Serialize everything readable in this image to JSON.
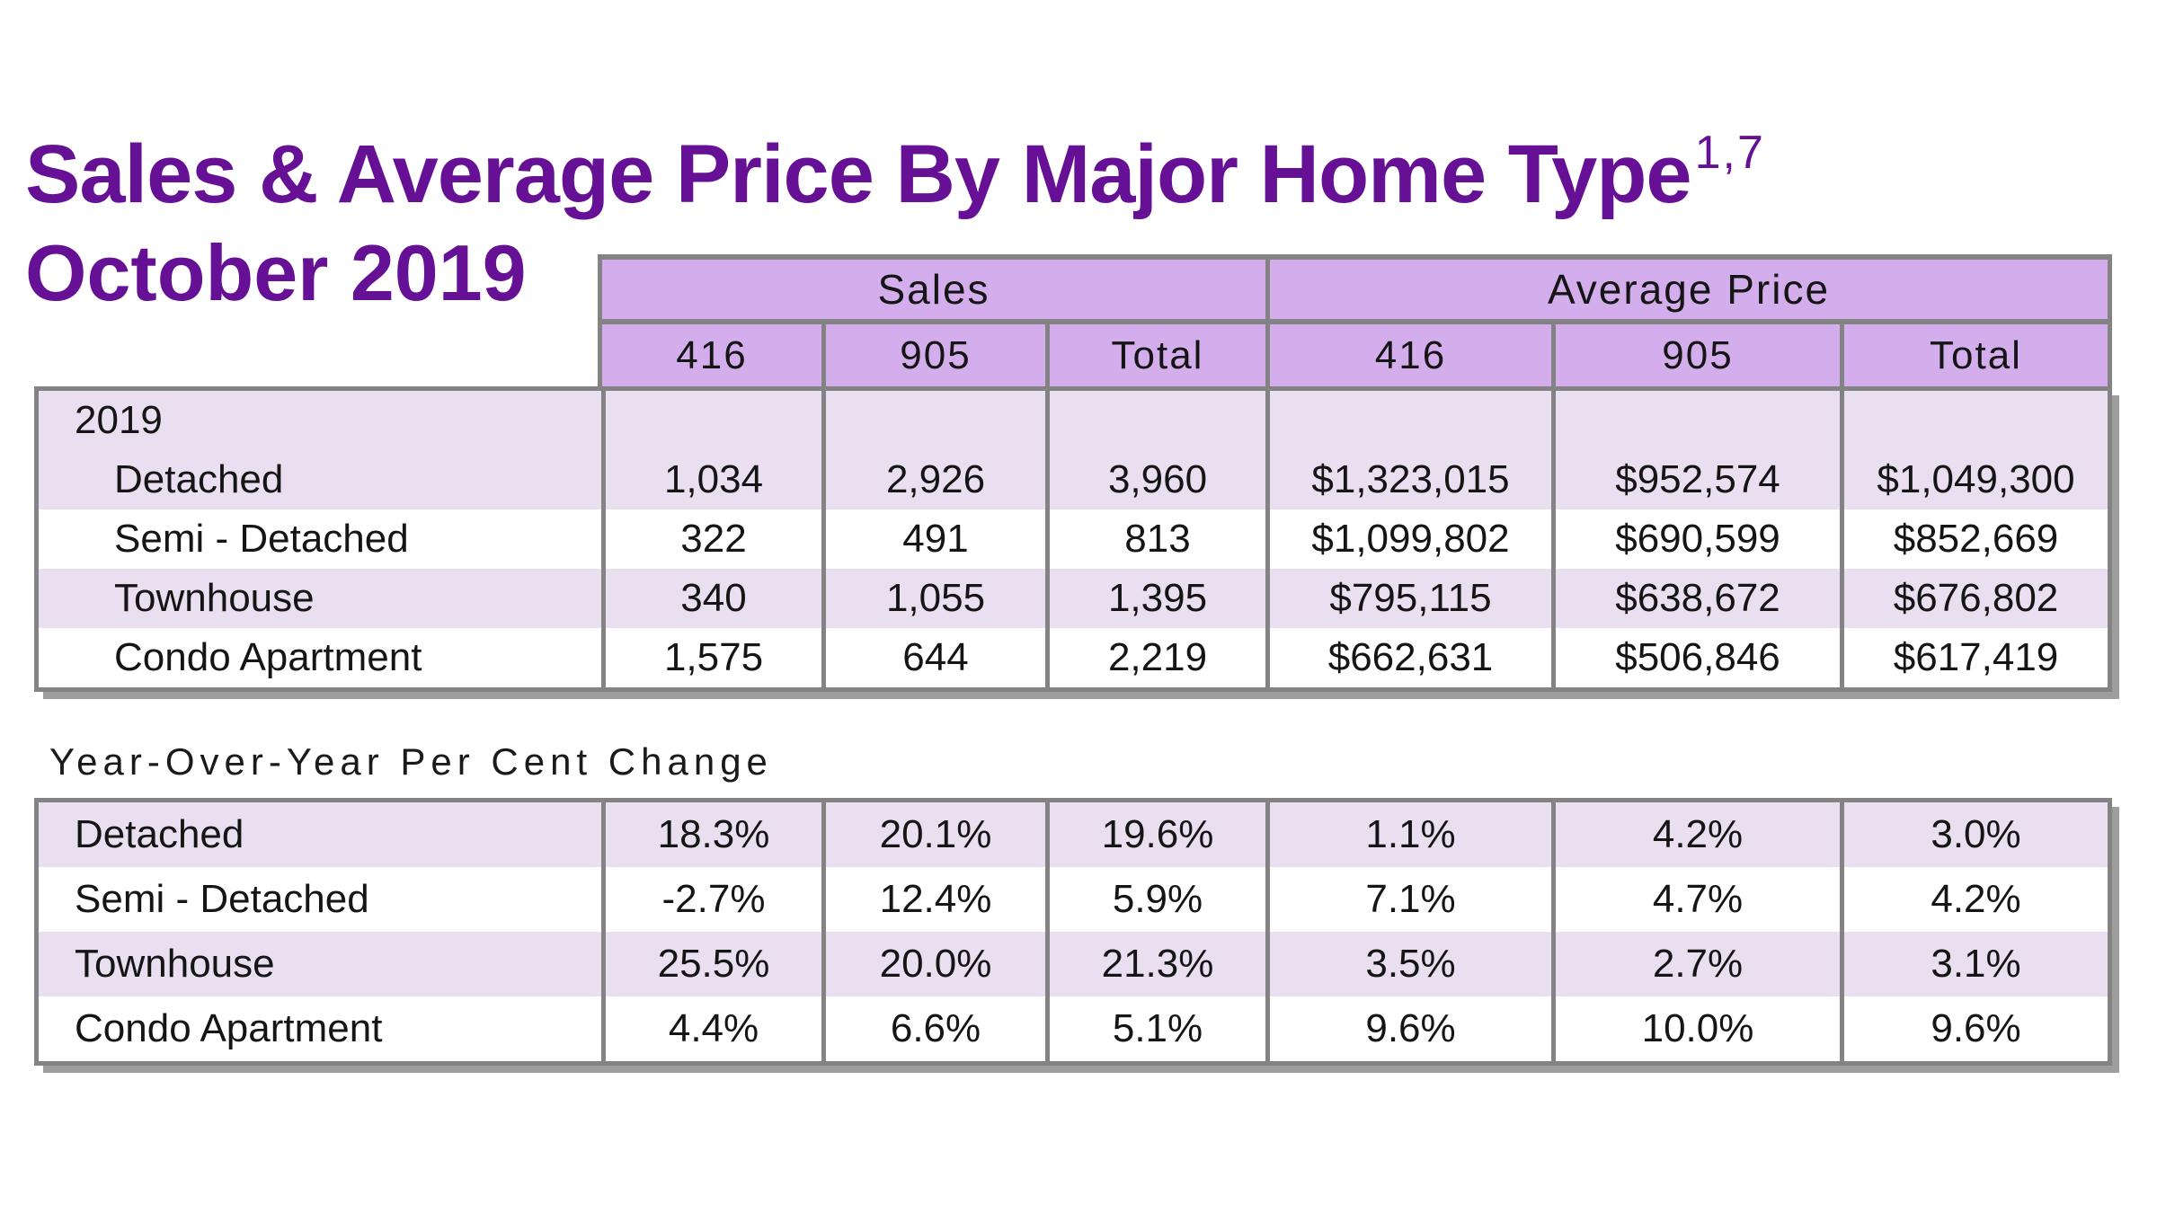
{
  "page": {
    "title_line1": "Sales & Average Price By Major Home Type",
    "title_superscript": "1,7",
    "title_line2": "October 2019",
    "yoy_title": "Year-Over-Year Per Cent Change"
  },
  "colors": {
    "title_purple": "#661195",
    "header_lavender": "#d4aeec",
    "row_lavender": "#e9dff0",
    "border_gray": "#838383",
    "shadow_gray": "#9e9e9e"
  },
  "table1": {
    "group_headers": [
      "Sales",
      "Average Price"
    ],
    "sub_headers": [
      "416",
      "905",
      "Total",
      "416",
      "905",
      "Total"
    ],
    "year_label": "2019",
    "rows": [
      {
        "label": "Detached",
        "cells": [
          "1,034",
          "2,926",
          "3,960",
          "$1,323,015",
          "$952,574",
          "$1,049,300"
        ]
      },
      {
        "label": "Semi - Detached",
        "cells": [
          "322",
          "491",
          "813",
          "$1,099,802",
          "$690,599",
          "$852,669"
        ]
      },
      {
        "label": "Townhouse",
        "cells": [
          "340",
          "1,055",
          "1,395",
          "$795,115",
          "$638,672",
          "$676,802"
        ]
      },
      {
        "label": "Condo Apartment",
        "cells": [
          "1,575",
          "644",
          "2,219",
          "$662,631",
          "$506,846",
          "$617,419"
        ]
      }
    ]
  },
  "table2": {
    "rows": [
      {
        "label": "Detached",
        "cells": [
          "18.3%",
          "20.1%",
          "19.6%",
          "1.1%",
          "4.2%",
          "3.0%"
        ]
      },
      {
        "label": "Semi - Detached",
        "cells": [
          "-2.7%",
          "12.4%",
          "5.9%",
          "7.1%",
          "4.7%",
          "4.2%"
        ]
      },
      {
        "label": "Townhouse",
        "cells": [
          "25.5%",
          "20.0%",
          "21.3%",
          "3.5%",
          "2.7%",
          "3.1%"
        ]
      },
      {
        "label": "Condo Apartment",
        "cells": [
          "4.4%",
          "6.6%",
          "5.1%",
          "9.6%",
          "10.0%",
          "9.6%"
        ]
      }
    ]
  }
}
